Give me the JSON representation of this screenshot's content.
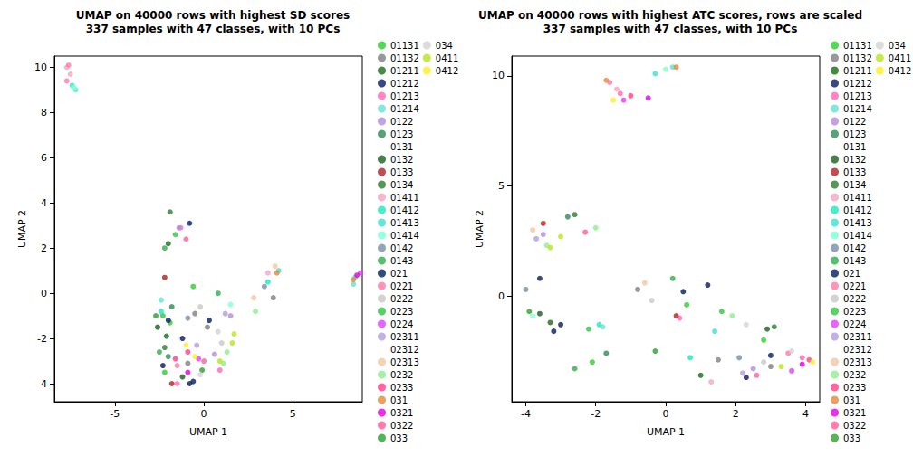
{
  "chart_data": [
    {
      "type": "scatter",
      "title": "UMAP on 40000 rows with highest SD scores\n337 samples with 47 classes, with 10 PCs",
      "x_label": "UMAP 1",
      "y_label": "UMAP 2",
      "marker": "circle",
      "legend": "right",
      "grid": false,
      "xlim": [
        -8.4,
        8.9
      ],
      "xticks": [
        -5,
        0,
        5
      ],
      "ylim": [
        -4.8,
        10.5
      ],
      "yticks": [
        -4,
        -2,
        0,
        2,
        4,
        6,
        8,
        10
      ],
      "series": [
        {
          "name": "01131",
          "color": "#2ecc2e",
          "values": [
            [
              -1.9,
              -1.3
            ],
            [
              -0.6,
              0.3
            ],
            [
              -2.2,
              -3.5
            ]
          ]
        },
        {
          "name": "01132",
          "color": "#808080",
          "values": [
            [
              -0.5,
              -0.9
            ],
            [
              0.2,
              -1.5
            ],
            [
              -0.9,
              -3.1
            ],
            [
              3.9,
              -0.2
            ]
          ]
        },
        {
          "name": "01211",
          "color": "#1a6b1a",
          "values": [
            [
              -2.1,
              -1.9
            ],
            [
              -2.0,
              2.2
            ]
          ]
        },
        {
          "name": "01212",
          "color": "#0a1a5e",
          "values": [
            [
              -2.3,
              -3.2
            ],
            [
              -0.8,
              -4.0
            ],
            [
              -1.2,
              -2.0
            ]
          ]
        },
        {
          "name": "01213",
          "color": "#ff69b4",
          "values": [
            [
              -1.3,
              2.9
            ],
            [
              -1.5,
              -4.0
            ],
            [
              0.9,
              -3.4
            ]
          ]
        },
        {
          "name": "01214",
          "color": "#66e0d0",
          "values": [
            [
              -7.2,
              9.0
            ],
            [
              -2.4,
              -0.3
            ],
            [
              8.4,
              0.4
            ]
          ]
        },
        {
          "name": "0122",
          "color": "#b28ddb",
          "values": [
            [
              -1.4,
              2.9
            ],
            [
              0.6,
              -2.7
            ],
            [
              1.5,
              -1.0
            ]
          ]
        },
        {
          "name": "0123",
          "color": "#2e8b57",
          "values": [
            [
              -1.8,
              -0.6
            ],
            [
              -2.0,
              -2.8
            ]
          ]
        },
        {
          "name": "0131",
          "color": "#ffffff",
          "values": [
            [
              0.3,
              -0.4
            ]
          ]
        },
        {
          "name": "0132",
          "color": "#1b5e20",
          "values": [
            [
              -2.6,
              -1.5
            ],
            [
              -1.2,
              -3.7
            ]
          ]
        },
        {
          "name": "0133",
          "color": "#b22222",
          "values": [
            [
              -2.2,
              0.7
            ],
            [
              -1.8,
              -4.0
            ]
          ]
        },
        {
          "name": "0134",
          "color": "#2e7d32",
          "values": [
            [
              -1.9,
              3.6
            ],
            [
              -2.2,
              -2.4
            ]
          ]
        },
        {
          "name": "01411",
          "color": "#f4a6c0",
          "values": [
            [
              -7.7,
              10.0
            ],
            [
              -7.5,
              9.7
            ],
            [
              3.6,
              0.9
            ]
          ]
        },
        {
          "name": "01412",
          "color": "#1de9b6",
          "values": [
            [
              -2.4,
              -0.8
            ],
            [
              3.6,
              0.5
            ]
          ]
        },
        {
          "name": "01413",
          "color": "#40e0d0",
          "values": [
            [
              -7.4,
              9.2
            ],
            [
              8.5,
              0.7
            ],
            [
              4.2,
              1.0
            ]
          ]
        },
        {
          "name": "01414",
          "color": "#7fffd4",
          "values": [
            [
              -7.3,
              9.1
            ],
            [
              1.5,
              -0.5
            ]
          ]
        },
        {
          "name": "0142",
          "color": "#7a8fa6",
          "values": [
            [
              -0.9,
              -1.1
            ],
            [
              3.4,
              0.3
            ]
          ]
        },
        {
          "name": "0143",
          "color": "#2fae4f",
          "values": [
            [
              -2.2,
              2.0
            ],
            [
              -2.5,
              -2.6
            ],
            [
              0.8,
              0.0
            ]
          ]
        },
        {
          "name": "021",
          "color": "#001f5c",
          "values": [
            [
              -0.8,
              3.1
            ],
            [
              -0.6,
              -3.9
            ],
            [
              -2.0,
              -1.2
            ],
            [
              0.3,
              -1.2
            ]
          ]
        },
        {
          "name": "0221",
          "color": "#ff7aa8",
          "values": [
            [
              -7.6,
              10.1
            ],
            [
              -7.7,
              9.4
            ],
            [
              -1.5,
              -3.2
            ]
          ]
        },
        {
          "name": "0222",
          "color": "#c8c8c8",
          "values": [
            [
              -0.2,
              -0.6
            ],
            [
              1.0,
              -2.2
            ]
          ]
        },
        {
          "name": "0223",
          "color": "#35c246",
          "values": [
            [
              -1.6,
              2.6
            ],
            [
              -2.3,
              -1.0
            ]
          ]
        },
        {
          "name": "0224",
          "color": "#e040fb",
          "values": [
            [
              -0.3,
              -2.9
            ],
            [
              8.8,
              0.9
            ]
          ]
        },
        {
          "name": "02311",
          "color": "#b39ddb",
          "values": [
            [
              -0.4,
              -2.3
            ],
            [
              1.2,
              -0.9
            ]
          ]
        },
        {
          "name": "02312",
          "color": "#ffffff",
          "values": [
            [
              0.5,
              0.1
            ]
          ]
        },
        {
          "name": "02313",
          "color": "#f5c6a0",
          "values": [
            [
              4.0,
              1.2
            ],
            [
              2.8,
              -0.2
            ]
          ]
        },
        {
          "name": "0232",
          "color": "#90ee90",
          "values": [
            [
              1.3,
              -2.6
            ],
            [
              2.9,
              -0.8
            ],
            [
              1.1,
              -3.1
            ]
          ]
        },
        {
          "name": "0233",
          "color": "#ff3f8a",
          "values": [
            [
              -0.9,
              -2.6
            ],
            [
              -1.6,
              -2.9
            ]
          ]
        },
        {
          "name": "031",
          "color": "#e08a3c",
          "values": [
            [
              8.4,
              0.6
            ],
            [
              4.1,
              0.9
            ]
          ]
        },
        {
          "name": "0321",
          "color": "#e000e0",
          "values": [
            [
              -0.9,
              -3.5
            ],
            [
              8.6,
              0.8
            ]
          ]
        },
        {
          "name": "0322",
          "color": "#ff5e9a",
          "values": [
            [
              0.0,
              -3.0
            ],
            [
              -1.0,
              2.4
            ]
          ]
        },
        {
          "name": "033",
          "color": "#2ca02c",
          "values": [
            [
              -2.7,
              -1.0
            ],
            [
              -0.1,
              -3.4
            ]
          ]
        },
        {
          "name": "034",
          "color": "#d3d3d3",
          "values": [
            [
              0.8,
              -1.7
            ],
            [
              -0.2,
              -3.6
            ]
          ]
        },
        {
          "name": "0411",
          "color": "#b5e61d",
          "values": [
            [
              1.6,
              -2.2
            ],
            [
              1.7,
              -1.8
            ],
            [
              0.9,
              -3.0
            ]
          ]
        },
        {
          "name": "0412",
          "color": "#ffee22",
          "values": [
            [
              -1.0,
              -2.3
            ],
            [
              -0.5,
              -2.8
            ]
          ]
        }
      ]
    },
    {
      "type": "scatter",
      "title": "UMAP on 40000 rows with highest ATC scores, rows are scaled\n337 samples with 47 classes, with 10 PCs",
      "x_label": "UMAP 1",
      "y_label": "UMAP 2",
      "marker": "circle",
      "legend": "right",
      "grid": false,
      "xlim": [
        -4.4,
        4.4
      ],
      "xticks": [
        -4,
        -2,
        0,
        2,
        4
      ],
      "ylim": [
        -4.8,
        10.9
      ],
      "yticks": [
        0,
        5,
        10
      ],
      "series": [
        {
          "name": "01131",
          "color": "#2ecc2e",
          "values": [
            [
              0.6,
              -0.4
            ],
            [
              -2.1,
              -3.0
            ],
            [
              2.8,
              -2.0
            ]
          ]
        },
        {
          "name": "01132",
          "color": "#808080",
          "values": [
            [
              3.0,
              -3.2
            ],
            [
              -0.8,
              0.3
            ],
            [
              1.5,
              -2.9
            ]
          ]
        },
        {
          "name": "01211",
          "color": "#1a6b1a",
          "values": [
            [
              -3.3,
              -1.2
            ],
            [
              1.0,
              -3.6
            ]
          ]
        },
        {
          "name": "01212",
          "color": "#0a1a5e",
          "values": [
            [
              -3.0,
              -1.3
            ],
            [
              1.2,
              0.5
            ],
            [
              2.3,
              -3.7
            ]
          ]
        },
        {
          "name": "01213",
          "color": "#ff69b4",
          "values": [
            [
              -1.3,
              9.2
            ],
            [
              0.4,
              -1.0
            ],
            [
              3.9,
              -2.8
            ]
          ]
        },
        {
          "name": "01214",
          "color": "#66e0d0",
          "values": [
            [
              0.2,
              10.4
            ],
            [
              -1.8,
              -1.4
            ]
          ]
        },
        {
          "name": "0122",
          "color": "#b28ddb",
          "values": [
            [
              -3.5,
              2.8
            ],
            [
              2.5,
              -3.3
            ]
          ]
        },
        {
          "name": "0123",
          "color": "#2e8b57",
          "values": [
            [
              -2.8,
              3.6
            ],
            [
              -1.7,
              -2.6
            ]
          ]
        },
        {
          "name": "0131",
          "color": "#ffffff",
          "values": [
            [
              1.0,
              -1.0
            ]
          ]
        },
        {
          "name": "0132",
          "color": "#1b5e20",
          "values": [
            [
              -3.6,
              -0.8
            ],
            [
              2.9,
              -1.5
            ]
          ]
        },
        {
          "name": "0133",
          "color": "#b22222",
          "values": [
            [
              -3.5,
              3.3
            ],
            [
              0.3,
              -0.9
            ]
          ]
        },
        {
          "name": "0134",
          "color": "#2e7d32",
          "values": [
            [
              -2.6,
              3.7
            ],
            [
              3.1,
              -1.4
            ]
          ]
        },
        {
          "name": "01411",
          "color": "#f4a6c0",
          "values": [
            [
              -1.4,
              9.4
            ],
            [
              1.3,
              -3.9
            ]
          ]
        },
        {
          "name": "01412",
          "color": "#1de9b6",
          "values": [
            [
              -1.9,
              -1.3
            ],
            [
              0.7,
              -2.8
            ]
          ]
        },
        {
          "name": "01413",
          "color": "#40e0d0",
          "values": [
            [
              -0.3,
              10.1
            ],
            [
              1.4,
              -1.6
            ]
          ]
        },
        {
          "name": "01414",
          "color": "#7fffd4",
          "values": [
            [
              0.0,
              10.3
            ],
            [
              -3.8,
              -0.9
            ]
          ]
        },
        {
          "name": "0142",
          "color": "#7a8fa6",
          "values": [
            [
              -4.0,
              0.3
            ],
            [
              2.1,
              -2.8
            ]
          ]
        },
        {
          "name": "0143",
          "color": "#2fae4f",
          "values": [
            [
              -2.6,
              -3.3
            ],
            [
              0.2,
              0.8
            ]
          ]
        },
        {
          "name": "021",
          "color": "#001f5c",
          "values": [
            [
              -3.6,
              0.8
            ],
            [
              -3.2,
              -1.6
            ],
            [
              0.5,
              0.2
            ],
            [
              3.0,
              -2.7
            ]
          ]
        },
        {
          "name": "0221",
          "color": "#ff7aa8",
          "values": [
            [
              -1.6,
              9.7
            ],
            [
              3.5,
              -2.6
            ]
          ]
        },
        {
          "name": "0222",
          "color": "#c8c8c8",
          "values": [
            [
              -0.4,
              -0.2
            ],
            [
              2.8,
              -3.0
            ]
          ]
        },
        {
          "name": "0223",
          "color": "#35c246",
          "values": [
            [
              -2.2,
              -1.5
            ],
            [
              1.6,
              -0.7
            ]
          ]
        },
        {
          "name": "0224",
          "color": "#e040fb",
          "values": [
            [
              -1.2,
              8.9
            ],
            [
              3.6,
              -3.4
            ]
          ]
        },
        {
          "name": "02311",
          "color": "#b39ddb",
          "values": [
            [
              -3.7,
              2.6
            ],
            [
              2.2,
              -3.5
            ]
          ]
        },
        {
          "name": "02312",
          "color": "#ffffff",
          "values": [
            [
              1.8,
              -1.9
            ]
          ]
        },
        {
          "name": "02313",
          "color": "#f5c6a0",
          "values": [
            [
              -3.8,
              3.0
            ],
            [
              -0.6,
              0.6
            ]
          ]
        },
        {
          "name": "0232",
          "color": "#90ee90",
          "values": [
            [
              -3.4,
              2.3
            ],
            [
              -2.0,
              3.1
            ],
            [
              1.9,
              -0.9
            ]
          ]
        },
        {
          "name": "0233",
          "color": "#ff3f8a",
          "values": [
            [
              -1.0,
              9.1
            ],
            [
              4.1,
              -2.9
            ]
          ]
        },
        {
          "name": "031",
          "color": "#e08a3c",
          "values": [
            [
              -1.7,
              9.8
            ],
            [
              0.3,
              10.4
            ]
          ]
        },
        {
          "name": "0321",
          "color": "#e000e0",
          "values": [
            [
              -0.5,
              9.0
            ],
            [
              3.9,
              -3.1
            ]
          ]
        },
        {
          "name": "0322",
          "color": "#ff5e9a",
          "values": [
            [
              -2.3,
              2.9
            ],
            [
              2.6,
              -3.6
            ]
          ]
        },
        {
          "name": "033",
          "color": "#2ca02c",
          "values": [
            [
              -3.9,
              -0.7
            ],
            [
              -0.3,
              -2.5
            ]
          ]
        },
        {
          "name": "034",
          "color": "#d3d3d3",
          "values": [
            [
              2.3,
              -1.3
            ],
            [
              3.6,
              -2.5
            ]
          ]
        },
        {
          "name": "0411",
          "color": "#b5e61d",
          "values": [
            [
              -3.3,
              2.2
            ],
            [
              -3.0,
              2.7
            ],
            [
              3.3,
              -3.2
            ]
          ]
        },
        {
          "name": "0412",
          "color": "#ffee22",
          "values": [
            [
              -1.5,
              8.9
            ],
            [
              4.2,
              -3.0
            ]
          ]
        }
      ]
    }
  ]
}
